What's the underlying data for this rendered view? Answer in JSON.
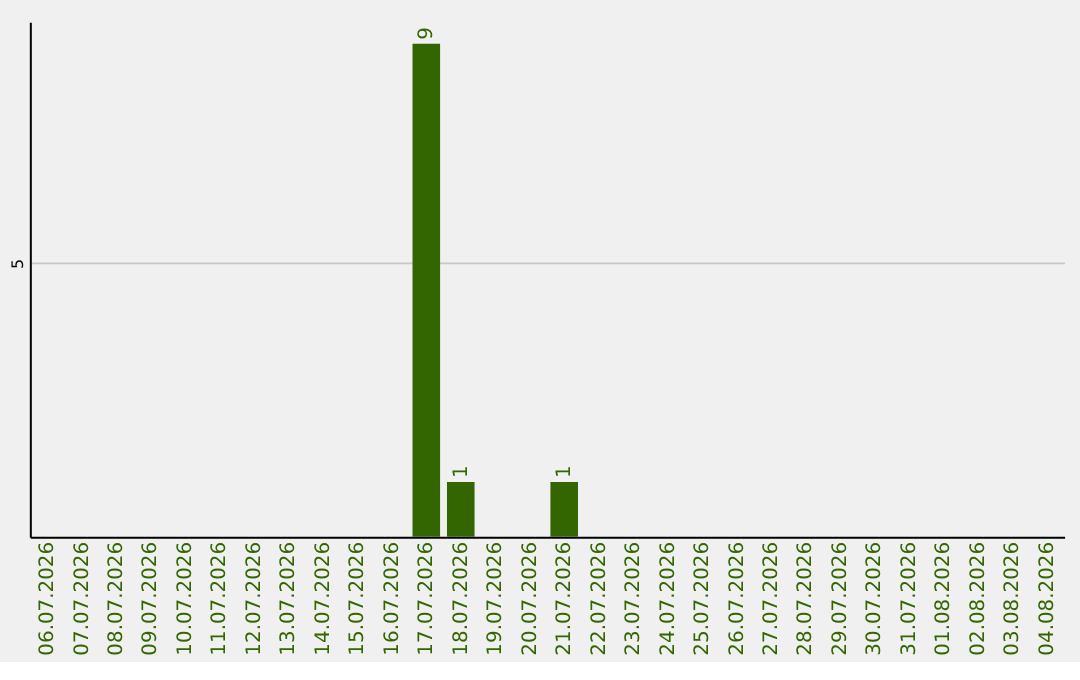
{
  "chart_data": {
    "type": "bar",
    "categories": [
      "06.07.2026",
      "07.07.2026",
      "08.07.2026",
      "09.07.2026",
      "10.07.2026",
      "11.07.2026",
      "12.07.2026",
      "13.07.2026",
      "14.07.2026",
      "15.07.2026",
      "16.07.2026",
      "17.07.2026",
      "18.07.2026",
      "19.07.2026",
      "20.07.2026",
      "21.07.2026",
      "22.07.2026",
      "23.07.2026",
      "24.07.2026",
      "25.07.2026",
      "26.07.2026",
      "27.07.2026",
      "28.07.2026",
      "29.07.2026",
      "30.07.2026",
      "31.07.2026",
      "01.08.2026",
      "02.08.2026",
      "03.08.2026",
      "04.08.2026"
    ],
    "values": [
      0,
      0,
      0,
      0,
      0,
      0,
      0,
      0,
      0,
      0,
      0,
      9,
      1,
      0,
      0,
      1,
      0,
      0,
      0,
      0,
      0,
      0,
      0,
      0,
      0,
      0,
      0,
      0,
      0,
      0
    ],
    "value_labels": [
      null,
      null,
      null,
      null,
      null,
      null,
      null,
      null,
      null,
      null,
      null,
      "9",
      "1",
      null,
      null,
      "1",
      null,
      null,
      null,
      null,
      null,
      null,
      null,
      null,
      null,
      null,
      null,
      null,
      null,
      null
    ],
    "color": "#336600",
    "ylim": [
      0,
      9.4
    ],
    "yticks": [
      5
    ],
    "grid": "y"
  }
}
